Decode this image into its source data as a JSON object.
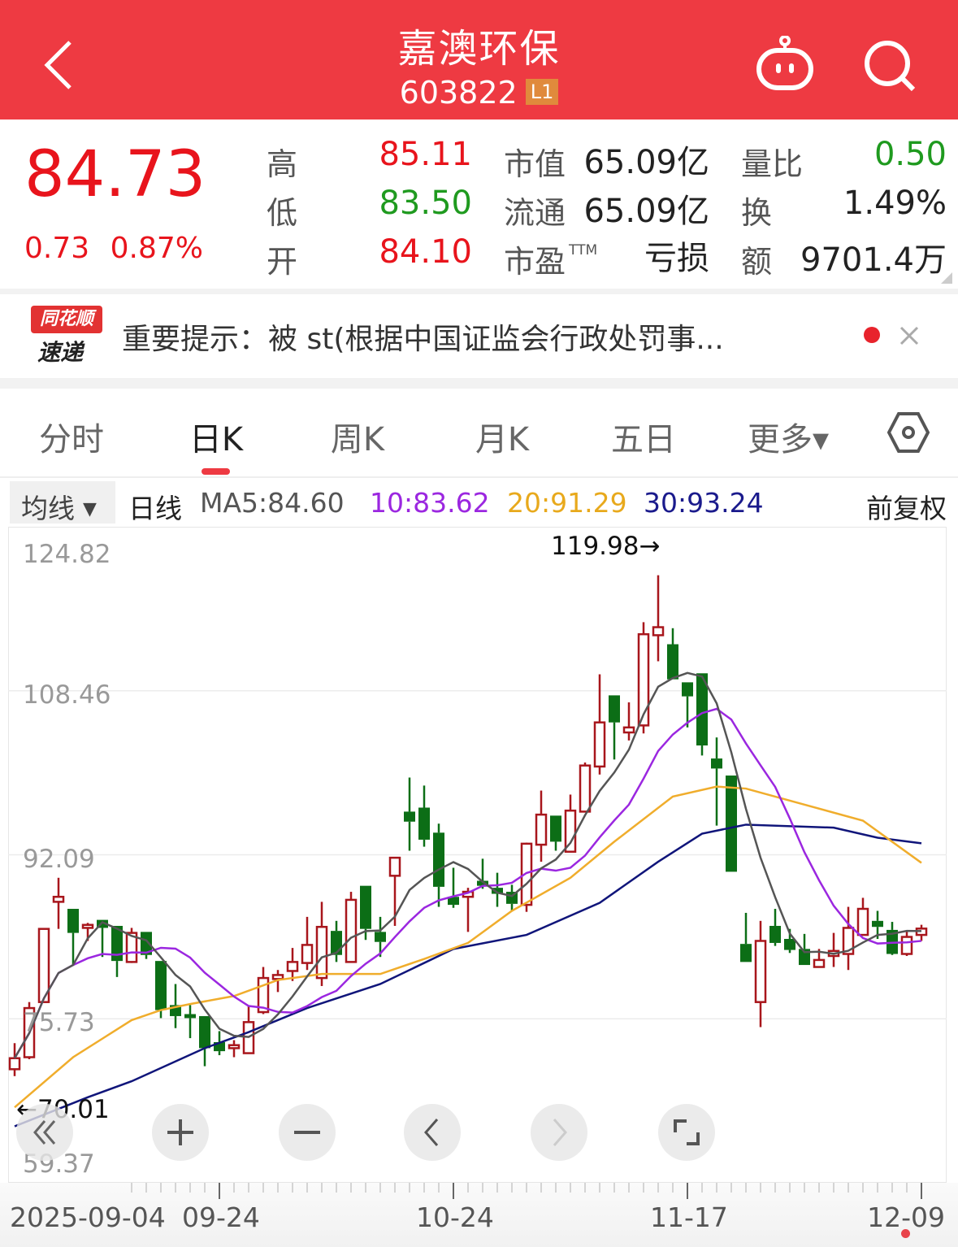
{
  "header": {
    "title": "嘉澳环保",
    "code": "603822",
    "badge": "L1",
    "back_icon": "chevron-left-icon",
    "robot_icon": "robot-icon",
    "search_icon": "search-icon"
  },
  "quote": {
    "price": "84.73",
    "change": "0.73",
    "change_pct": "0.87%",
    "high_label": "高",
    "high": "85.11",
    "low_label": "低",
    "low": "83.50",
    "open_label": "开",
    "open": "84.10",
    "mktcap_label": "市值",
    "mktcap": "65.09亿",
    "float_label": "流通",
    "float": "65.09亿",
    "pe_label": "市盈",
    "pe_sup": "TTM",
    "pe": "亏损",
    "volratio_label": "量比",
    "volratio": "0.50",
    "turnover_label": "换",
    "turnover": "1.49%",
    "amount_label": "额",
    "amount": "9701.4万",
    "colors": {
      "up": "#e8141c",
      "down": "#1f9a1f"
    }
  },
  "notice": {
    "logo_top": "同花顺",
    "logo_bottom": "速递",
    "text": "重要提示：被 st(根据中国证监会行政处罚事...",
    "close_icon": "close-icon"
  },
  "tabs": [
    {
      "label": "分时"
    },
    {
      "label": "日K",
      "active": true
    },
    {
      "label": "周K"
    },
    {
      "label": "月K"
    },
    {
      "label": "五日"
    },
    {
      "label": "更多▾"
    }
  ],
  "settings_icon": "settings-hexagon-icon",
  "ma_bar": {
    "selector": "均线",
    "period": "日线",
    "ma5": "MA5:84.60",
    "ma10": "10:83.62",
    "ma20": "20:91.29",
    "ma30": "30:93.24",
    "adjust": "前复权"
  },
  "chart_data": {
    "type": "candlestick",
    "y_ticks": [
      "124.82",
      "108.46",
      "92.09",
      "75.73",
      "59.37"
    ],
    "ylim": [
      59.37,
      124.82
    ],
    "grid": true,
    "x_tick_labels": [
      "2025-09-04",
      "09-24",
      "10-24",
      "11-17",
      "12-09"
    ],
    "max_label": "119.98→",
    "min_label": "←70.01",
    "candles_ohlc": [
      [
        70.7,
        73.3,
        70.01,
        71.8
      ],
      [
        71.9,
        77.4,
        71.7,
        76.8
      ],
      [
        77.4,
        84.7,
        77.4,
        84.7
      ],
      [
        87.4,
        89.8,
        84.7,
        87.9
      ],
      [
        86.7,
        86.7,
        81.1,
        84.3
      ],
      [
        84.8,
        85.3,
        83.5,
        85.1
      ],
      [
        85.6,
        85.6,
        81.9,
        84.8
      ],
      [
        85.0,
        85.0,
        79.9,
        81.5
      ],
      [
        81.4,
        84.8,
        81.3,
        84.3
      ],
      [
        84.4,
        84.4,
        81.7,
        82.1
      ],
      [
        81.5,
        81.5,
        75.8,
        76.6
      ],
      [
        77.1,
        79.2,
        74.8,
        76.0
      ],
      [
        76.2,
        77.1,
        73.8,
        75.8
      ],
      [
        76.0,
        76.0,
        71.0,
        72.8
      ],
      [
        73.4,
        74.5,
        72.1,
        72.5
      ],
      [
        72.8,
        73.6,
        71.9,
        73.1
      ],
      [
        72.3,
        77.0,
        72.3,
        75.4
      ],
      [
        76.4,
        80.9,
        76.2,
        79.8
      ],
      [
        79.7,
        80.6,
        78.4,
        80.1
      ],
      [
        80.5,
        82.8,
        79.5,
        81.4
      ],
      [
        81.3,
        85.9,
        80.6,
        83.1
      ],
      [
        79.8,
        87.4,
        79.0,
        84.9
      ],
      [
        84.5,
        85.5,
        81.4,
        82.1
      ],
      [
        81.4,
        88.4,
        81.4,
        87.6
      ],
      [
        89.0,
        89.0,
        83.6,
        84.7
      ],
      [
        84.4,
        85.9,
        81.9,
        83.4
      ],
      [
        90.0,
        91.8,
        85.0,
        91.8
      ],
      [
        96.4,
        99.8,
        92.5,
        95.4
      ],
      [
        96.8,
        99.0,
        92.9,
        93.6
      ],
      [
        94.3,
        95.2,
        86.9,
        88.9
      ],
      [
        87.9,
        90.8,
        86.8,
        87.1
      ],
      [
        87.9,
        88.8,
        84.4,
        88.4
      ],
      [
        89.5,
        91.7,
        88.7,
        89.0
      ],
      [
        88.8,
        90.3,
        86.9,
        88.2
      ],
      [
        88.4,
        89.1,
        86.5,
        87.2
      ],
      [
        87.1,
        93.3,
        86.4,
        93.2
      ],
      [
        93.1,
        98.5,
        91.4,
        96.1
      ],
      [
        96.0,
        96.0,
        92.5,
        93.4
      ],
      [
        92.4,
        98.1,
        92.4,
        96.5
      ],
      [
        96.4,
        101.3,
        96.4,
        101.0
      ],
      [
        100.9,
        110.1,
        100.1,
        105.3
      ],
      [
        108.0,
        108.0,
        101.6,
        105.3
      ],
      [
        104.3,
        107.3,
        103.5,
        104.8
      ],
      [
        105.0,
        115.3,
        104.2,
        114.1
      ],
      [
        114.0,
        119.98,
        111.4,
        114.8
      ],
      [
        113.1,
        114.7,
        109.6,
        109.6
      ],
      [
        109.3,
        109.3,
        104.8,
        107.9
      ],
      [
        110.2,
        110.2,
        102.0,
        103.0
      ],
      [
        101.7,
        103.8,
        95.0,
        100.7
      ],
      [
        100.0,
        100.0,
        90.4,
        90.4
      ],
      [
        83.2,
        86.3,
        81.4,
        81.4
      ],
      [
        77.4,
        85.5,
        74.9,
        83.5
      ],
      [
        85.0,
        86.7,
        83.0,
        83.3
      ],
      [
        83.7,
        84.7,
        82.3,
        82.6
      ],
      [
        82.7,
        84.2,
        81.1,
        81.1
      ],
      [
        80.9,
        82.7,
        80.9,
        81.6
      ],
      [
        82.0,
        84.3,
        80.9,
        82.5
      ],
      [
        82.2,
        86.9,
        80.6,
        84.8
      ],
      [
        84.1,
        87.8,
        84.1,
        86.7
      ],
      [
        85.5,
        86.5,
        83.7,
        84.9
      ],
      [
        84.6,
        85.4,
        82.1,
        82.2
      ],
      [
        82.2,
        84.4,
        82.0,
        83.9
      ],
      [
        84.1,
        85.11,
        83.5,
        84.73
      ]
    ],
    "ma20_points": [
      [
        0,
        66.9
      ],
      [
        4,
        71.9
      ],
      [
        8,
        75.6
      ],
      [
        10,
        76.6
      ],
      [
        12,
        77.2
      ],
      [
        15,
        78.0
      ],
      [
        18,
        79.6
      ],
      [
        21,
        80.2
      ],
      [
        25,
        80.2
      ],
      [
        28,
        81.7
      ],
      [
        31,
        83.3
      ],
      [
        34,
        86.5
      ],
      [
        38,
        89.8
      ],
      [
        41,
        93.4
      ],
      [
        45,
        97.9
      ],
      [
        48,
        98.9
      ],
      [
        50,
        98.7
      ],
      [
        54,
        97.1
      ],
      [
        58,
        95.5
      ],
      [
        62,
        91.29
      ]
    ],
    "ma30_points": [
      [
        0,
        65.0
      ],
      [
        5,
        67.9
      ],
      [
        8,
        69.5
      ],
      [
        13,
        72.8
      ],
      [
        16,
        74.4
      ],
      [
        20,
        76.8
      ],
      [
        25,
        79.2
      ],
      [
        30,
        82.7
      ],
      [
        35,
        84.1
      ],
      [
        40,
        87.3
      ],
      [
        44,
        91.4
      ],
      [
        47,
        94.2
      ],
      [
        50,
        95.1
      ],
      [
        56,
        94.8
      ],
      [
        59,
        93.8
      ],
      [
        62,
        93.24
      ]
    ],
    "colors": {
      "up": "#a8161c",
      "down": "#0c6e16",
      "ma5": "#555555",
      "ma10": "#9b27e0",
      "ma20": "#f0ad2c",
      "ma30": "#10157a"
    }
  },
  "chart_controls": [
    "double-chevron-left-icon",
    "zoom-in-icon",
    "zoom-out-icon",
    "chevron-left-icon",
    "chevron-right-icon",
    "fullscreen-icon"
  ]
}
